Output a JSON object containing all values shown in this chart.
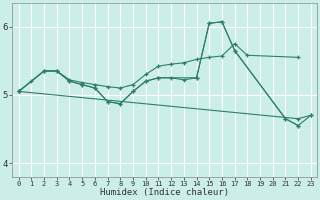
{
  "title": "",
  "xlabel": "Humidex (Indice chaleur)",
  "xlim": [
    -0.5,
    23.5
  ],
  "ylim": [
    3.8,
    6.35
  ],
  "yticks": [
    4,
    5,
    6
  ],
  "xticks": [
    0,
    1,
    2,
    3,
    4,
    5,
    6,
    7,
    8,
    9,
    10,
    11,
    12,
    13,
    14,
    15,
    16,
    17,
    18,
    19,
    20,
    21,
    22,
    23
  ],
  "bg_color": "#cceee8",
  "line_color": "#2e7d6e",
  "grid_color": "#ffffff",
  "lines": [
    {
      "x": [
        0,
        2,
        3,
        4,
        5,
        6,
        7,
        8,
        9,
        10,
        11,
        12,
        13,
        14,
        15,
        16,
        17,
        18,
        22
      ],
      "y": [
        5.05,
        5.35,
        5.35,
        5.22,
        5.18,
        5.15,
        5.12,
        5.1,
        5.15,
        5.3,
        5.42,
        5.45,
        5.47,
        5.52,
        5.55,
        5.57,
        5.75,
        5.58,
        5.55
      ]
    },
    {
      "x": [
        0,
        1,
        2,
        3,
        4,
        5,
        6,
        7,
        8,
        9,
        10,
        11,
        14,
        15,
        16,
        17,
        21,
        22
      ],
      "y": [
        5.05,
        5.2,
        5.35,
        5.35,
        5.2,
        5.15,
        5.1,
        4.9,
        4.87,
        5.05,
        5.2,
        5.25,
        5.25,
        6.05,
        6.07,
        5.65,
        4.65,
        4.55
      ]
    },
    {
      "x": [
        0,
        2,
        3,
        4,
        5,
        6,
        7,
        8,
        9,
        10,
        11,
        12,
        13,
        14,
        15,
        16,
        17,
        21,
        22,
        23
      ],
      "y": [
        5.05,
        5.35,
        5.35,
        5.2,
        5.15,
        5.1,
        4.9,
        4.87,
        5.05,
        5.2,
        5.25,
        5.25,
        5.22,
        5.25,
        6.05,
        6.07,
        5.65,
        4.65,
        4.55,
        4.7
      ]
    },
    {
      "x": [
        0,
        22,
        23
      ],
      "y": [
        5.05,
        4.65,
        4.7
      ]
    }
  ]
}
